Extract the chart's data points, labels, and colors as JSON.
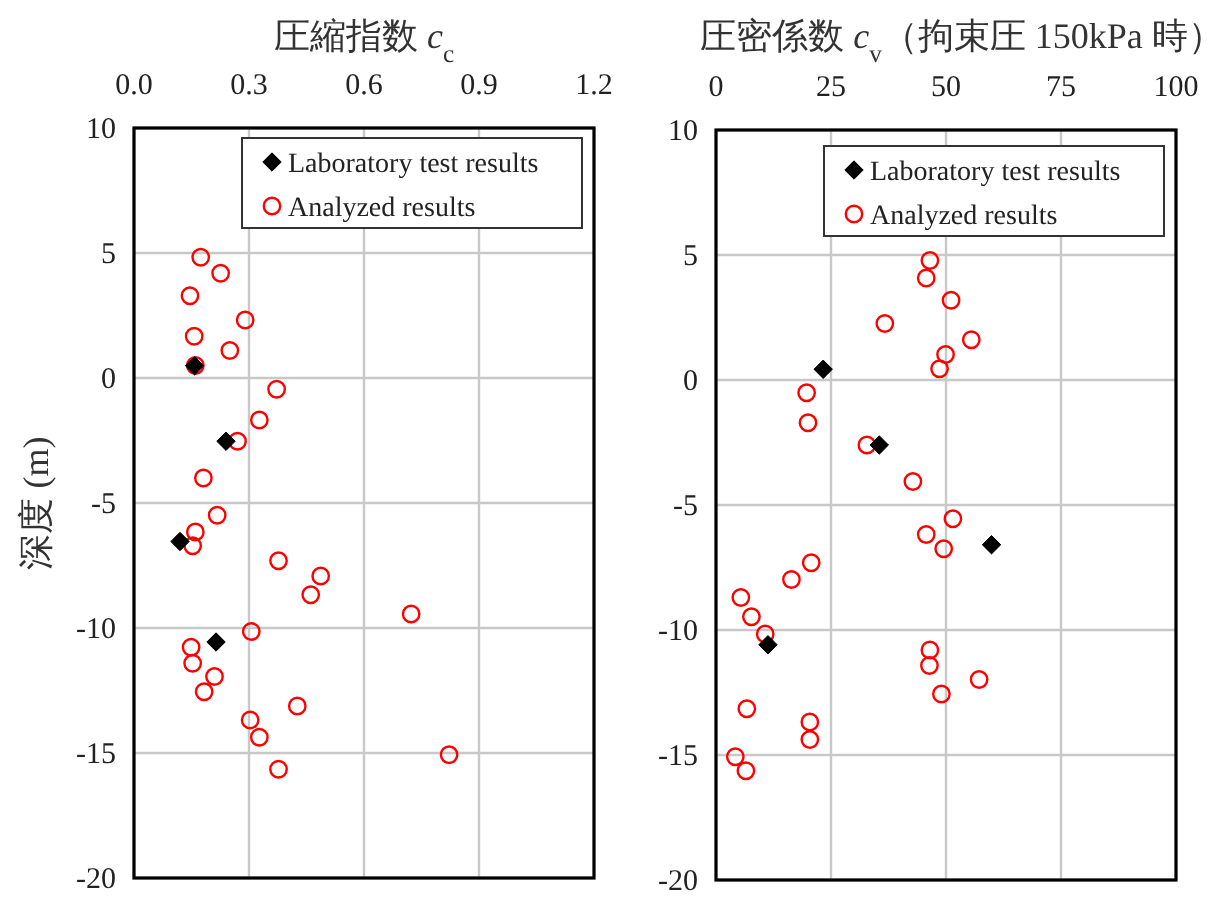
{
  "chart_data": [
    {
      "type": "scatter",
      "title": "圧縮指数 *c*$_{c}$",
      "ylabel": "深度 (m)",
      "xlim": [
        0,
        1.2
      ],
      "ylim": [
        -20,
        10
      ],
      "xticks": [
        {
          "value": 0,
          "label": "0.0"
        },
        0.3,
        0.6,
        0.9,
        1.2
      ],
      "yticks": [
        -20,
        -15,
        -10,
        -5,
        0,
        5,
        10
      ],
      "grid": true,
      "legend": "top right",
      "series": [
        {
          "name": "Laboratory test results",
          "color": "#000000",
          "marker": "diamond",
          "x": [
            0.158,
            0.24,
            0.12,
            0.214
          ],
          "values": [
            0.49,
            -2.53,
            -6.54,
            -10.56
          ]
        },
        {
          "name": "Analyzed results",
          "color": "#ff0000",
          "marker": "circle",
          "x": [
            0.174,
            0.226,
            0.146,
            0.29,
            0.157,
            0.25,
            0.16,
            0.372,
            0.327,
            0.27,
            0.181,
            0.217,
            0.16,
            0.153,
            0.377,
            0.487,
            0.461,
            0.723,
            0.306,
            0.149,
            0.153,
            0.21,
            0.183,
            0.426,
            0.303,
            0.327,
            0.822,
            0.377
          ],
          "values": [
            4.83,
            4.19,
            3.29,
            2.32,
            1.67,
            1.1,
            0.5,
            -0.45,
            -1.68,
            -2.53,
            -4.0,
            -5.49,
            -6.16,
            -6.71,
            -7.31,
            -7.92,
            -8.67,
            -9.44,
            -10.14,
            -10.77,
            -11.41,
            -11.94,
            -12.55,
            -13.12,
            -13.68,
            -14.37,
            -15.07,
            -15.65
          ]
        }
      ]
    },
    {
      "type": "scatter",
      "title": "圧密係数 *c*$_{v}$（拘束圧 150kPa 時）",
      "xlim": [
        0,
        100
      ],
      "ylim": [
        -20,
        10
      ],
      "xticks": [
        0,
        25,
        50,
        75,
        100
      ],
      "yticks": [
        -20,
        -15,
        -10,
        -5,
        0,
        5,
        10
      ],
      "grid": true,
      "legend": "top right",
      "series": [
        {
          "name": "Laboratory test results",
          "color": "#000000",
          "marker": "diamond",
          "x": [
            23.3,
            35.5,
            59.9,
            11.3
          ],
          "values": [
            0.43,
            -2.6,
            -6.59,
            -10.59
          ]
        },
        {
          "name": "Analyzed results",
          "color": "#ff0000",
          "marker": "circle",
          "x": [
            46.5,
            45.7,
            51.1,
            36.7,
            55.5,
            49.9,
            48.6,
            19.7,
            20.0,
            32.8,
            42.8,
            51.5,
            45.7,
            49.5,
            20.7,
            16.4,
            5.4,
            7.7,
            10.7,
            46.5,
            46.4,
            57.2,
            49.0,
            6.7,
            20.4,
            20.4,
            4.2,
            6.5
          ],
          "values": [
            4.78,
            4.08,
            3.19,
            2.26,
            1.61,
            1.02,
            0.45,
            -0.51,
            -1.71,
            -2.6,
            -4.06,
            -5.55,
            -6.18,
            -6.75,
            -7.31,
            -7.98,
            -8.7,
            -9.47,
            -10.16,
            -10.8,
            -11.42,
            -11.98,
            -12.56,
            -13.15,
            -13.68,
            -14.38,
            -15.07,
            -15.63
          ]
        }
      ]
    }
  ]
}
